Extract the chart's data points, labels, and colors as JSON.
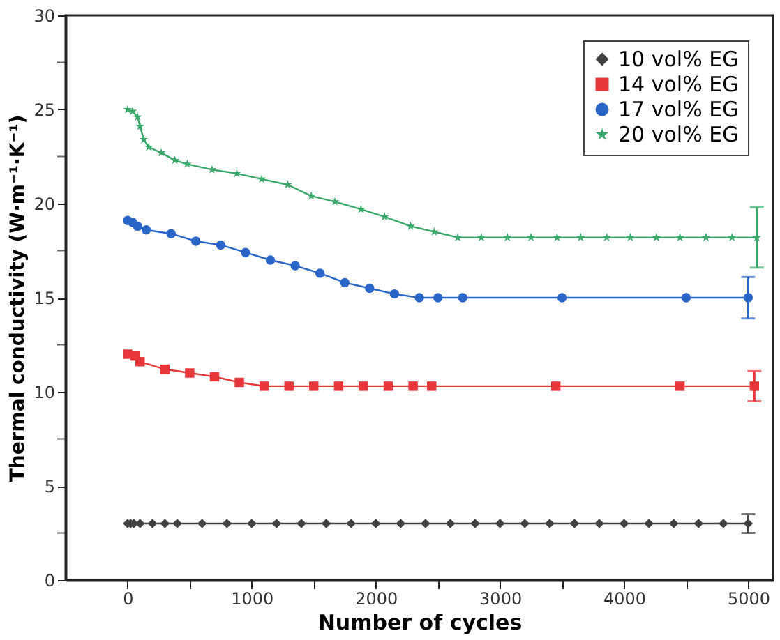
{
  "chart_data": {
    "type": "line",
    "xlabel": "Number of cycles",
    "ylabel": "Thermal conductivity (W·m⁻¹·K⁻¹)",
    "xlim": [
      -500,
      5200
    ],
    "ylim": [
      0,
      30
    ],
    "xticks": [
      0,
      {
        "value": 500,
        "label": null
      },
      1000,
      {
        "value": 1500,
        "label": null
      },
      2000,
      {
        "value": 2500,
        "label": null
      },
      3000,
      {
        "value": 3500,
        "label": null
      },
      4000,
      {
        "value": 4500,
        "label": null
      },
      5000
    ],
    "yticks": [
      0,
      {
        "value": 2.5,
        "label": null
      },
      5,
      {
        "value": 7.5,
        "label": null
      },
      10,
      {
        "value": 12.5,
        "label": null
      },
      15,
      {
        "value": 17.5,
        "label": null
      },
      20,
      {
        "value": 22.5,
        "label": null
      },
      25,
      {
        "value": 27.5,
        "label": null
      },
      30
    ],
    "grid": false,
    "legend": "top right",
    "line_style": "solid",
    "series": [
      {
        "name": "10 vol% EG",
        "color": "#404040",
        "marker": "diamond",
        "x": [
          0,
          25,
          50,
          100,
          200,
          300,
          400,
          600,
          800,
          1000,
          1200,
          1400,
          1600,
          1800,
          2000,
          2200,
          2400,
          2600,
          2800,
          3000,
          3200,
          3400,
          3600,
          3800,
          4000,
          4200,
          4400,
          4600,
          4800,
          5000
        ],
        "values": [
          3,
          3,
          3,
          3,
          3,
          3,
          3,
          3,
          3,
          3,
          3,
          3,
          3,
          3,
          3,
          3,
          3,
          3,
          3,
          3,
          3,
          3,
          3,
          3,
          3,
          3,
          3,
          3,
          3,
          3
        ],
        "errors": [
          null,
          null,
          null,
          null,
          null,
          null,
          null,
          null,
          null,
          null,
          null,
          null,
          null,
          null,
          null,
          null,
          null,
          null,
          null,
          null,
          null,
          null,
          null,
          null,
          null,
          null,
          null,
          null,
          null,
          0.5
        ]
      },
      {
        "name": "14 vol% EG",
        "color": "#e8373a",
        "marker": "square",
        "x": [
          0,
          60,
          100,
          300,
          500,
          700,
          900,
          1100,
          1300,
          1500,
          1700,
          1900,
          2100,
          2300,
          2450,
          3450,
          4450,
          5050
        ],
        "values": [
          12.0,
          11.9,
          11.6,
          11.2,
          11.0,
          10.8,
          10.5,
          10.3,
          10.3,
          10.3,
          10.3,
          10.3,
          10.3,
          10.3,
          10.3,
          10.3,
          10.3,
          10.3
        ],
        "errors": [
          null,
          null,
          null,
          null,
          null,
          null,
          null,
          null,
          null,
          null,
          null,
          null,
          null,
          null,
          null,
          null,
          null,
          0.8
        ]
      },
      {
        "name": "17 vol% EG",
        "color": "#2a66c8",
        "marker": "circle",
        "x": [
          0,
          40,
          80,
          150,
          350,
          550,
          750,
          950,
          1150,
          1350,
          1550,
          1750,
          1950,
          2150,
          2350,
          2500,
          2700,
          3500,
          4500,
          5000
        ],
        "values": [
          19.1,
          19.0,
          18.8,
          18.6,
          18.4,
          18.0,
          17.8,
          17.4,
          17.0,
          16.7,
          16.3,
          15.8,
          15.5,
          15.2,
          15.0,
          15.0,
          15.0,
          15.0,
          15.0,
          15.0
        ],
        "errors": [
          null,
          null,
          null,
          null,
          null,
          null,
          null,
          null,
          null,
          null,
          null,
          null,
          null,
          null,
          null,
          null,
          null,
          null,
          null,
          1.1
        ]
      },
      {
        "name": "20 vol% EG",
        "color": "#3aa86a",
        "marker": "star",
        "x": [
          0,
          40,
          80,
          100,
          130,
          170,
          270,
          380,
          480,
          680,
          880,
          1080,
          1290,
          1480,
          1670,
          1880,
          2070,
          2280,
          2470,
          2660,
          2850,
          3060,
          3250,
          3460,
          3650,
          3860,
          4050,
          4260,
          4450,
          4660,
          4870,
          5070
        ],
        "values": [
          25.0,
          24.9,
          24.6,
          24.1,
          23.4,
          23.0,
          22.7,
          22.3,
          22.1,
          21.8,
          21.6,
          21.3,
          21.0,
          20.4,
          20.1,
          19.7,
          19.3,
          18.8,
          18.5,
          18.2,
          18.2,
          18.2,
          18.2,
          18.2,
          18.2,
          18.2,
          18.2,
          18.2,
          18.2,
          18.2,
          18.2,
          18.2
        ],
        "errors": [
          null,
          null,
          null,
          null,
          null,
          null,
          null,
          null,
          null,
          null,
          null,
          null,
          null,
          null,
          null,
          null,
          null,
          null,
          null,
          null,
          null,
          null,
          null,
          null,
          null,
          null,
          null,
          null,
          null,
          null,
          null,
          1.6
        ]
      }
    ]
  }
}
